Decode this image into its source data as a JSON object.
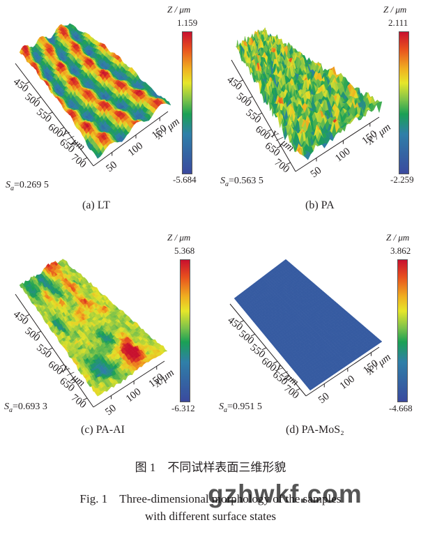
{
  "panels": [
    {
      "caption": "(a) LT",
      "cbar_title": "Z / μm",
      "cbar_max": "1.159",
      "cbar_min": "-5.684",
      "sa_symbol": "S",
      "sa_sub": "a",
      "sa_value": "=0.269 5",
      "y_ticks": [
        "450",
        "500",
        "550",
        "600",
        "650",
        "700"
      ],
      "y_title": "Y / μm",
      "x_ticks": [
        "50",
        "100",
        "150"
      ],
      "x_title": "X / μm"
    },
    {
      "caption": "(b) PA",
      "cbar_title": "Z / μm",
      "cbar_max": "2.111",
      "cbar_min": "-2.259",
      "sa_symbol": "S",
      "sa_sub": "a",
      "sa_value": "=0.563 5",
      "y_ticks": [
        "450",
        "500",
        "550",
        "600",
        "650",
        "700"
      ],
      "y_title": "Y / μm",
      "x_ticks": [
        "50",
        "100",
        "150"
      ],
      "x_title": "X / μm"
    },
    {
      "caption": "(c) PA-AI",
      "cbar_title": "Z / μm",
      "cbar_max": "5.368",
      "cbar_min": "-6.312",
      "sa_symbol": "S",
      "sa_sub": "a",
      "sa_value": "=0.693 3",
      "y_ticks": [
        "450",
        "500",
        "550",
        "600",
        "650",
        "700"
      ],
      "y_title": "Y / μm",
      "x_ticks": [
        "50",
        "100",
        "150"
      ],
      "x_title": "X/μm"
    },
    {
      "caption": "(d) PA-MoS₂",
      "cbar_title": "Z / μm",
      "cbar_max": "3.862",
      "cbar_min": "-4.668",
      "sa_symbol": "S",
      "sa_sub": "a",
      "sa_value": "=0.951 5",
      "y_ticks": [
        "450",
        "500",
        "550",
        "600",
        "650",
        "700"
      ],
      "y_title": "Y / μm",
      "x_ticks": [
        "50",
        "100",
        "150"
      ],
      "x_title": "X / μm"
    }
  ],
  "figure": {
    "caption_zh": "图 1　不同试样表面三维形貌",
    "caption_en_line1": "Fig. 1　Three-dimensional morphology of the samples",
    "caption_en_line2": "with different surface states"
  },
  "watermark": "gzhwkf.com",
  "colors": {
    "scale_high": "#c8102e",
    "scale_mid_high": "#f0b020",
    "scale_mid": "#1aa055",
    "scale_low": "#3a4a9e"
  }
}
